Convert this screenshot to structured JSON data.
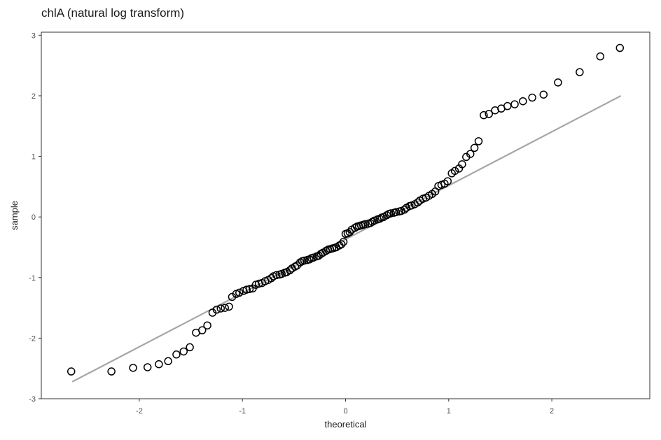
{
  "chart_data": {
    "type": "scatter",
    "title": "chlA (natural log transform)",
    "xlabel": "theoretical",
    "ylabel": "sample",
    "xlim": [
      -2.95,
      2.95
    ],
    "ylim": [
      -3.0,
      3.05
    ],
    "xticks": [
      -2,
      -1,
      0,
      1,
      2
    ],
    "yticks": [
      -3,
      -2,
      -1,
      0,
      1,
      2,
      3
    ],
    "xtick_labels": [
      "-2",
      "-1",
      "0",
      "1",
      "2"
    ],
    "ytick_labels": [
      "-3",
      "-2",
      "-1",
      "0",
      "1",
      "2",
      "3"
    ],
    "grid": false,
    "reference_line": {
      "x": [
        -2.65,
        2.67
      ],
      "y": [
        -2.72,
        2.0
      ],
      "color": "#a6a6a6"
    },
    "marker": {
      "shape": "open-circle",
      "stroke": "#000000"
    },
    "points": [
      [
        -2.66,
        -2.55
      ],
      [
        -2.27,
        -2.55
      ],
      [
        -2.06,
        -2.49
      ],
      [
        -1.92,
        -2.48
      ],
      [
        -1.81,
        -2.43
      ],
      [
        -1.72,
        -2.38
      ],
      [
        -1.64,
        -2.27
      ],
      [
        -1.57,
        -2.22
      ],
      [
        -1.51,
        -2.15
      ],
      [
        -1.45,
        -1.91
      ],
      [
        -1.39,
        -1.87
      ],
      [
        -1.34,
        -1.79
      ],
      [
        -1.29,
        -1.58
      ],
      [
        -1.25,
        -1.53
      ],
      [
        -1.21,
        -1.51
      ],
      [
        -1.17,
        -1.5
      ],
      [
        -1.13,
        -1.48
      ],
      [
        -1.1,
        -1.32
      ],
      [
        -1.06,
        -1.27
      ],
      [
        -1.03,
        -1.25
      ],
      [
        -0.99,
        -1.22
      ],
      [
        -0.96,
        -1.2
      ],
      [
        -0.93,
        -1.19
      ],
      [
        -0.9,
        -1.18
      ],
      [
        -0.87,
        -1.12
      ],
      [
        -0.84,
        -1.1
      ],
      [
        -0.81,
        -1.09
      ],
      [
        -0.78,
        -1.06
      ],
      [
        -0.75,
        -1.04
      ],
      [
        -0.72,
        -1.01
      ],
      [
        -0.7,
        -0.98
      ],
      [
        -0.67,
        -0.96
      ],
      [
        -0.64,
        -0.95
      ],
      [
        -0.62,
        -0.94
      ],
      [
        -0.59,
        -0.92
      ],
      [
        -0.57,
        -0.91
      ],
      [
        -0.54,
        -0.88
      ],
      [
        -0.52,
        -0.85
      ],
      [
        -0.49,
        -0.82
      ],
      [
        -0.47,
        -0.8
      ],
      [
        -0.44,
        -0.75
      ],
      [
        -0.42,
        -0.73
      ],
      [
        -0.4,
        -0.72
      ],
      [
        -0.37,
        -0.71
      ],
      [
        -0.35,
        -0.7
      ],
      [
        -0.33,
        -0.68
      ],
      [
        -0.31,
        -0.67
      ],
      [
        -0.28,
        -0.65
      ],
      [
        -0.26,
        -0.64
      ],
      [
        -0.24,
        -0.61
      ],
      [
        -0.22,
        -0.59
      ],
      [
        -0.19,
        -0.56
      ],
      [
        -0.17,
        -0.54
      ],
      [
        -0.15,
        -0.53
      ],
      [
        -0.13,
        -0.52
      ],
      [
        -0.11,
        -0.51
      ],
      [
        -0.09,
        -0.5
      ],
      [
        -0.06,
        -0.47
      ],
      [
        -0.04,
        -0.45
      ],
      [
        -0.02,
        -0.41
      ],
      [
        0.0,
        -0.28
      ],
      [
        0.02,
        -0.27
      ],
      [
        0.04,
        -0.25
      ],
      [
        0.06,
        -0.21
      ],
      [
        0.09,
        -0.18
      ],
      [
        0.11,
        -0.16
      ],
      [
        0.13,
        -0.15
      ],
      [
        0.15,
        -0.14
      ],
      [
        0.17,
        -0.13
      ],
      [
        0.19,
        -0.12
      ],
      [
        0.22,
        -0.11
      ],
      [
        0.24,
        -0.1
      ],
      [
        0.26,
        -0.08
      ],
      [
        0.28,
        -0.06
      ],
      [
        0.31,
        -0.04
      ],
      [
        0.33,
        -0.03
      ],
      [
        0.35,
        -0.01
      ],
      [
        0.37,
        0.0
      ],
      [
        0.4,
        0.03
      ],
      [
        0.42,
        0.05
      ],
      [
        0.44,
        0.06
      ],
      [
        0.47,
        0.07
      ],
      [
        0.49,
        0.08
      ],
      [
        0.52,
        0.09
      ],
      [
        0.54,
        0.1
      ],
      [
        0.57,
        0.12
      ],
      [
        0.59,
        0.15
      ],
      [
        0.62,
        0.18
      ],
      [
        0.64,
        0.19
      ],
      [
        0.67,
        0.21
      ],
      [
        0.7,
        0.24
      ],
      [
        0.72,
        0.27
      ],
      [
        0.75,
        0.3
      ],
      [
        0.78,
        0.32
      ],
      [
        0.81,
        0.35
      ],
      [
        0.84,
        0.38
      ],
      [
        0.87,
        0.42
      ],
      [
        0.9,
        0.51
      ],
      [
        0.93,
        0.53
      ],
      [
        0.96,
        0.55
      ],
      [
        0.99,
        0.59
      ],
      [
        1.03,
        0.72
      ],
      [
        1.06,
        0.76
      ],
      [
        1.1,
        0.8
      ],
      [
        1.13,
        0.87
      ],
      [
        1.17,
        0.99
      ],
      [
        1.21,
        1.04
      ],
      [
        1.25,
        1.14
      ],
      [
        1.29,
        1.25
      ],
      [
        1.34,
        1.68
      ],
      [
        1.39,
        1.7
      ],
      [
        1.45,
        1.76
      ],
      [
        1.51,
        1.79
      ],
      [
        1.57,
        1.83
      ],
      [
        1.64,
        1.86
      ],
      [
        1.72,
        1.91
      ],
      [
        1.81,
        1.97
      ],
      [
        1.92,
        2.02
      ],
      [
        2.06,
        2.22
      ],
      [
        2.27,
        2.39
      ],
      [
        2.47,
        2.65
      ],
      [
        2.66,
        2.79
      ]
    ]
  }
}
